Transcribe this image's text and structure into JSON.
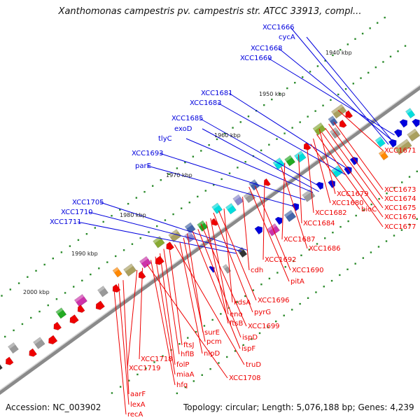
{
  "title": "Xanthomonas campestris pv. campestris str. ATCC 33913, compl...",
  "footer": {
    "accession": "Accession: NC_003902",
    "info": "Topology: circular; Length: 5,076,188 bp; Genes: 4,239"
  },
  "ticks": [
    "1940 kbp",
    "1950 kbp",
    "1960 kbp",
    "1970 kbp",
    "1980 kbp",
    "1990 kbp",
    "2000 kbp"
  ],
  "colors": {
    "forward": "#0000cc",
    "reverse": "#ee0000",
    "backbone": "#888888"
  },
  "labels_forward": [
    "XCC1666",
    "cycA",
    "XCC1668",
    "XCC1669",
    "XCC1681",
    "XCC1683",
    "XCC1685",
    "exoD",
    "tlyC",
    "XCC1693",
    "parE",
    "XCC1705",
    "XCC1710",
    "XCC1711"
  ],
  "labels_reverse": [
    "XCC1671",
    "XCC1673",
    "XCC1674",
    "XCC1675",
    "XCC1676",
    "XCC1677",
    "XCC1679",
    "XCC1680",
    "bioC",
    "XCC1682",
    "XCC1684",
    "XCC1687",
    "XCC1686",
    "XCC1692",
    "XCC1690",
    "pitA",
    "cdh",
    "kdsA",
    "XCC1696",
    "pyrG",
    "eno",
    "ftsB",
    "XCC1699",
    "ispD",
    "ispF",
    "surE",
    "pcm",
    "nlpD",
    "truD",
    "ftsJ",
    "hflB",
    "folP",
    "miaA",
    "hfq",
    "XCC1708",
    "XCC1718",
    "XCC1719",
    "aarF",
    "lexA",
    "recA"
  ]
}
